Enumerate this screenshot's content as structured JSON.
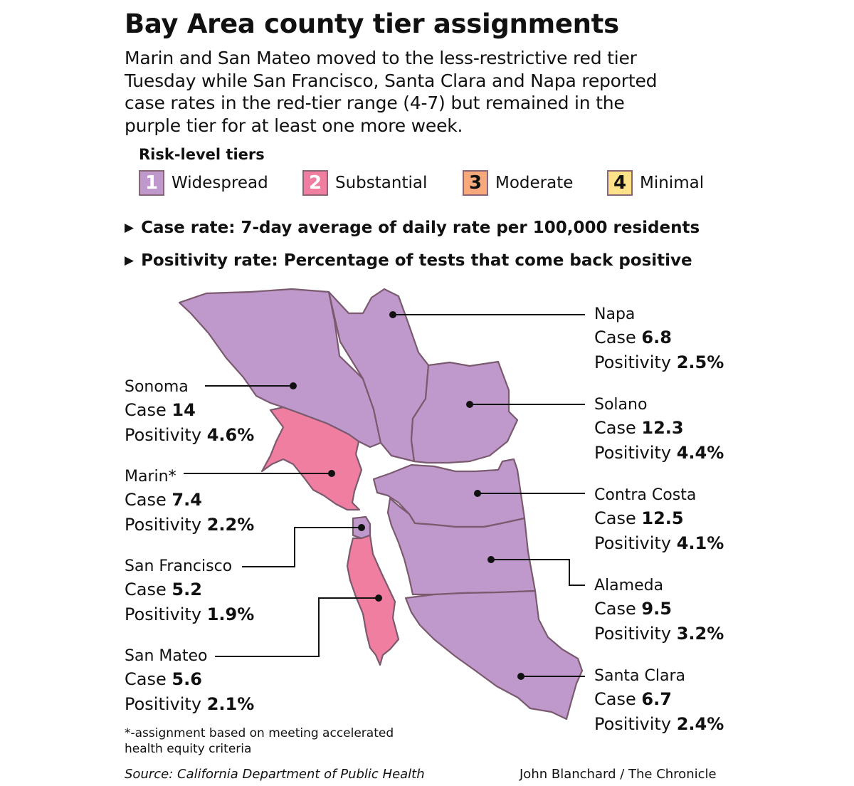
{
  "title": "Bay Area county tier assignments",
  "intro": "Marin and San Mateo moved to the less-restrictive red tier Tuesday while San Francisco, Santa Clara and Napa reported case rates in the red-tier range (4-7) but remained in the purple tier for at least one more week.",
  "legend": {
    "title": "Risk-level tiers",
    "tiers": [
      {
        "number": "1",
        "label": "Widespread",
        "color": "#bf99cb"
      },
      {
        "number": "2",
        "label": "Substantial",
        "color": "#f07ea1"
      },
      {
        "number": "3",
        "label": "Moderate",
        "color": "#f7a97c"
      },
      {
        "number": "4",
        "label": "Minimal",
        "color": "#fde28a"
      }
    ]
  },
  "definitions": {
    "case_rate": "Case rate: 7-day average of daily rate per 100,000 residents",
    "positivity_rate": "Positivity rate: Percentage of tests that come back positive"
  },
  "labels": {
    "case": "Case",
    "positivity": "Positivity"
  },
  "counties": {
    "napa": {
      "name": "Napa",
      "case": "6.8",
      "positivity": "2.5%",
      "tier": 1
    },
    "solano": {
      "name": "Solano",
      "case": "12.3",
      "positivity": "4.4%",
      "tier": 1
    },
    "contra_costa": {
      "name": "Contra Costa",
      "case": "12.5",
      "positivity": "4.1%",
      "tier": 1
    },
    "alameda": {
      "name": "Alameda",
      "case": "9.5",
      "positivity": "3.2%",
      "tier": 1
    },
    "santa_clara": {
      "name": "Santa Clara",
      "case": "6.7",
      "positivity": "2.4%",
      "tier": 1
    },
    "sonoma": {
      "name": "Sonoma",
      "case": "14",
      "positivity": "4.6%",
      "tier": 1
    },
    "marin": {
      "name": "Marin*",
      "case": "7.4",
      "positivity": "2.2%",
      "tier": 2
    },
    "san_francisco": {
      "name": "San Francisco",
      "case": "5.2",
      "positivity": "1.9%",
      "tier": 1
    },
    "san_mateo": {
      "name": "San Mateo",
      "case": "5.6",
      "positivity": "2.1%",
      "tier": 2
    }
  },
  "footnote": "*-assignment based on meeting accelerated health equity criteria",
  "source": "Source: California Department of Public Health",
  "credit": "John Blanchard / The Chronicle"
}
